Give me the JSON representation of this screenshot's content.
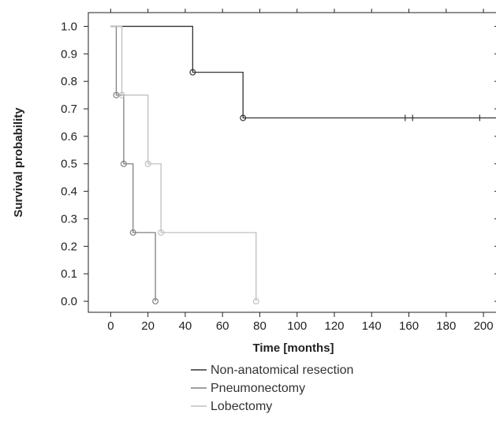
{
  "chart_data": {
    "type": "line",
    "step": true,
    "xlabel": "Time [months]",
    "ylabel": "Survival probability",
    "xlim": [
      -12,
      208
    ],
    "ylim": [
      -0.04,
      1.05
    ],
    "x_ticks": [
      0,
      20,
      40,
      60,
      80,
      100,
      120,
      140,
      160,
      180,
      200
    ],
    "y_ticks": [
      0.0,
      0.1,
      0.2,
      0.3,
      0.4,
      0.5,
      0.6,
      0.7,
      0.8,
      0.9,
      1.0
    ],
    "y_tick_labels": [
      "0.0",
      "0.1",
      "0.2",
      "0.3",
      "0.4",
      "0.5",
      "0.6",
      "0.7",
      "0.8",
      "0.9",
      "1.0"
    ],
    "grid": false,
    "legend_position": "bottom",
    "series": [
      {
        "name": "Non-anatomical resection",
        "color": "#333333",
        "steps": [
          [
            0,
            1.0
          ],
          [
            44,
            0.833
          ],
          [
            71,
            0.667
          ]
        ],
        "end_x": 208,
        "events": [
          [
            44,
            0.833
          ],
          [
            71,
            0.667
          ]
        ],
        "censored": [
          [
            158,
            0.667
          ],
          [
            162,
            0.667
          ],
          [
            198,
            0.667
          ]
        ]
      },
      {
        "name": "Pneumonectomy",
        "color": "#808080",
        "steps": [
          [
            0,
            1.0
          ],
          [
            3,
            0.75
          ],
          [
            7,
            0.5
          ],
          [
            12,
            0.25
          ],
          [
            24,
            0.0
          ]
        ],
        "end_x": 24,
        "events": [
          [
            3,
            0.75
          ],
          [
            7,
            0.5
          ],
          [
            12,
            0.25
          ],
          [
            24,
            0.0
          ]
        ],
        "censored": []
      },
      {
        "name": "Lobectomy",
        "color": "#c0c0c0",
        "steps": [
          [
            0,
            1.0
          ],
          [
            6,
            0.75
          ],
          [
            20,
            0.5
          ],
          [
            27,
            0.25
          ],
          [
            78,
            0.0
          ]
        ],
        "end_x": 78,
        "events": [
          [
            6,
            0.75
          ],
          [
            20,
            0.5
          ],
          [
            27,
            0.25
          ],
          [
            78,
            0.0
          ]
        ],
        "censored": []
      }
    ]
  }
}
